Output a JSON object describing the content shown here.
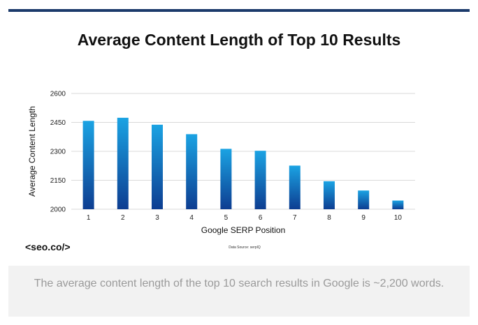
{
  "chart_data": {
    "type": "bar",
    "title": "Average Content Length of Top 10 Results",
    "xlabel": "Google SERP Position",
    "ylabel": "Average Content Length",
    "categories": [
      "1",
      "2",
      "3",
      "4",
      "5",
      "6",
      "7",
      "8",
      "9",
      "10"
    ],
    "values": [
      2458,
      2474,
      2438,
      2389,
      2313,
      2303,
      2226,
      2145,
      2097,
      2045
    ],
    "ylim": [
      2000,
      2600
    ],
    "yticks": [
      2000,
      2150,
      2300,
      2450,
      2600
    ],
    "grid": true,
    "legend": "none",
    "bar_color_top": "#1ba3e3",
    "bar_color_bottom": "#0d3d91"
  },
  "branding": {
    "logo_text": "<seo.co/>"
  },
  "source_note": "Data Source: serpIQ",
  "caption": "The average content length of the top 10 search results in Google is ~2,200 words.",
  "colors": {
    "top_rule": "#1b3a6b",
    "caption_bg": "#f2f2f2",
    "caption_text": "#9a9a9a"
  }
}
